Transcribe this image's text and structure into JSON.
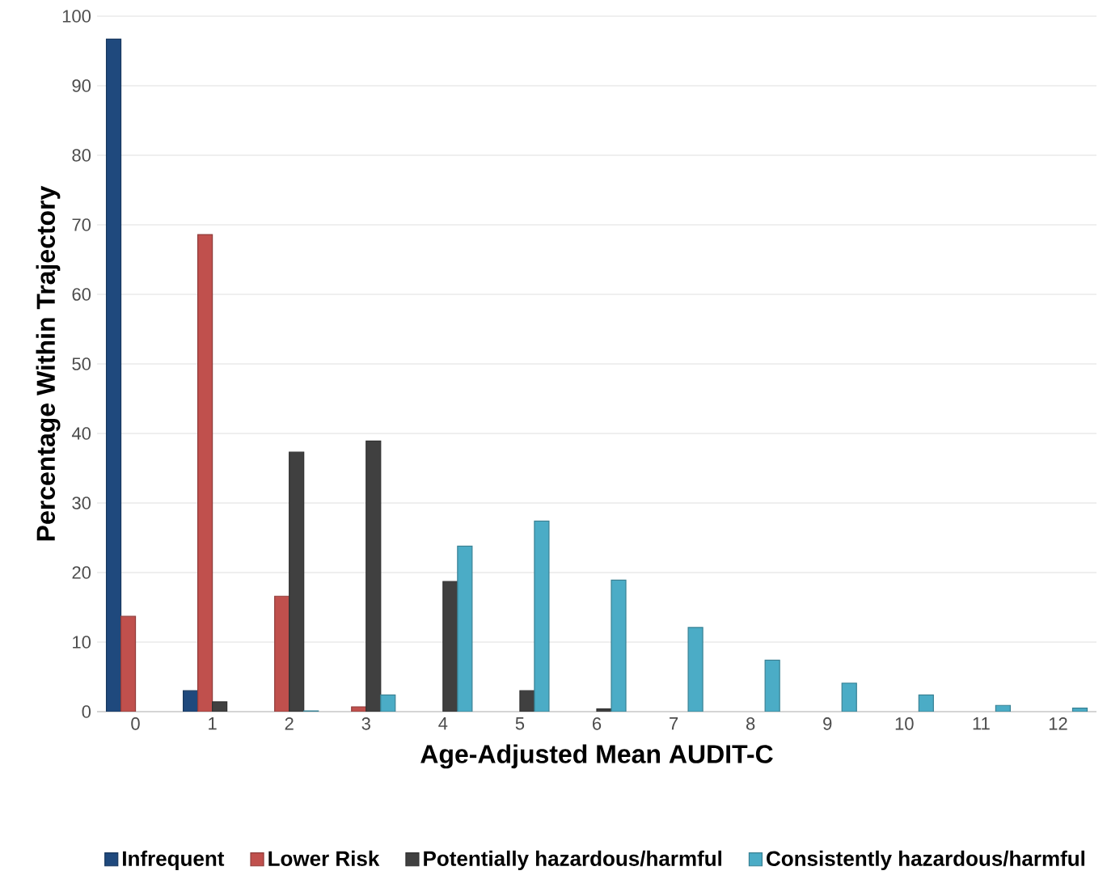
{
  "chart_data": {
    "type": "bar",
    "xlabel": "Age-Adjusted Mean AUDIT-C",
    "ylabel": "Percentage Within Trajectory",
    "categories": [
      "0",
      "1",
      "2",
      "3",
      "4",
      "5",
      "6",
      "7",
      "8",
      "9",
      "10",
      "11",
      "12"
    ],
    "series": [
      {
        "name": "Infrequent",
        "color": "#1f497d",
        "values": [
          96.7,
          3.0,
          null,
          null,
          null,
          null,
          null,
          null,
          null,
          null,
          null,
          null,
          null
        ]
      },
      {
        "name": "Lower Risk",
        "color": "#c0504d",
        "values": [
          13.7,
          68.6,
          16.6,
          0.7,
          null,
          null,
          null,
          null,
          null,
          null,
          null,
          null,
          null
        ]
      },
      {
        "name": "Potentially hazardous/harmful",
        "color": "#404040",
        "values": [
          null,
          1.4,
          37.3,
          38.9,
          18.7,
          3.0,
          0.4,
          null,
          null,
          null,
          null,
          null,
          null
        ]
      },
      {
        "name": "Consistently hazardous/harmful",
        "color": "#4bacc6",
        "values": [
          null,
          null,
          0.1,
          2.4,
          23.8,
          27.4,
          18.9,
          12.1,
          7.4,
          4.1,
          2.4,
          0.9,
          0.5
        ]
      }
    ],
    "ylim": [
      0,
      100
    ],
    "yticks": [
      0,
      10,
      20,
      30,
      40,
      50,
      60,
      70,
      80,
      90,
      100
    ],
    "grid": "y",
    "legend": "bottom"
  }
}
